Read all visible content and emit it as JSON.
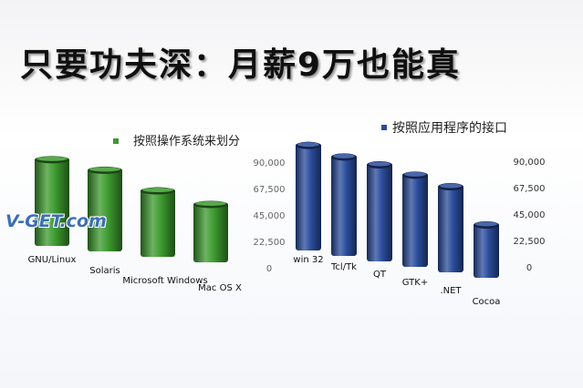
{
  "title": "只要功夫深：月薪9万也能真",
  "watermark": "V-GET.com",
  "chart_data": [
    {
      "type": "bar",
      "legend": "按照操作系统来划分",
      "categories": [
        "GNU/Linux",
        "Solaris",
        "Microsoft Windows",
        "Mac OS X"
      ],
      "values": [
        87000,
        82000,
        67000,
        59000
      ],
      "ylim": [
        0,
        90000
      ],
      "yticks": [
        "90,000",
        "67,500",
        "45,000",
        "22,500",
        "0"
      ],
      "color": "#3c9a2e",
      "grid": false,
      "legend_position": "top"
    },
    {
      "type": "bar",
      "legend": "按照应用程序的接口",
      "categories": [
        "win 32",
        "Tcl/Tk",
        "QT",
        "GTK+",
        ".NET",
        "Cocoa"
      ],
      "values": [
        88000,
        83000,
        81000,
        77000,
        72000,
        45000
      ],
      "ylim": [
        0,
        90000
      ],
      "yticks": [
        "90,000",
        "67,500",
        "45,000",
        "22,500",
        "0"
      ],
      "color": "#2a4c9c",
      "grid": false,
      "legend_position": "top"
    }
  ]
}
